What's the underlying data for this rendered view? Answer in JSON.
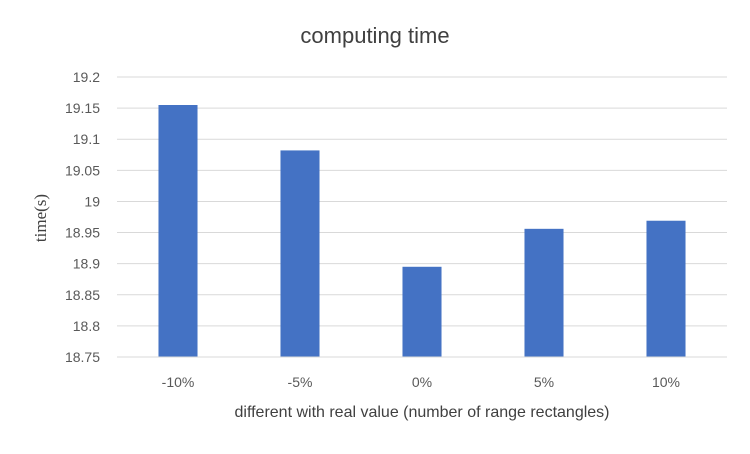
{
  "chart_data": {
    "type": "bar",
    "title": "computing time",
    "xlabel": "different with real value (number of range rectangles)",
    "ylabel": "time(s)",
    "categories": [
      "-10%",
      "-5%",
      "0%",
      "5%",
      "10%"
    ],
    "values": [
      19.155,
      19.082,
      18.895,
      18.956,
      18.969
    ],
    "ylim": [
      18.75,
      19.2
    ],
    "yticks": [
      "18.75",
      "18.8",
      "18.85",
      "18.9",
      "18.95",
      "19",
      "19.05",
      "19.1",
      "19.15",
      "19.2"
    ],
    "grid": true,
    "legend": "none",
    "colors": {
      "bar": "#4472C4",
      "grid": "#D9D9D9"
    }
  }
}
